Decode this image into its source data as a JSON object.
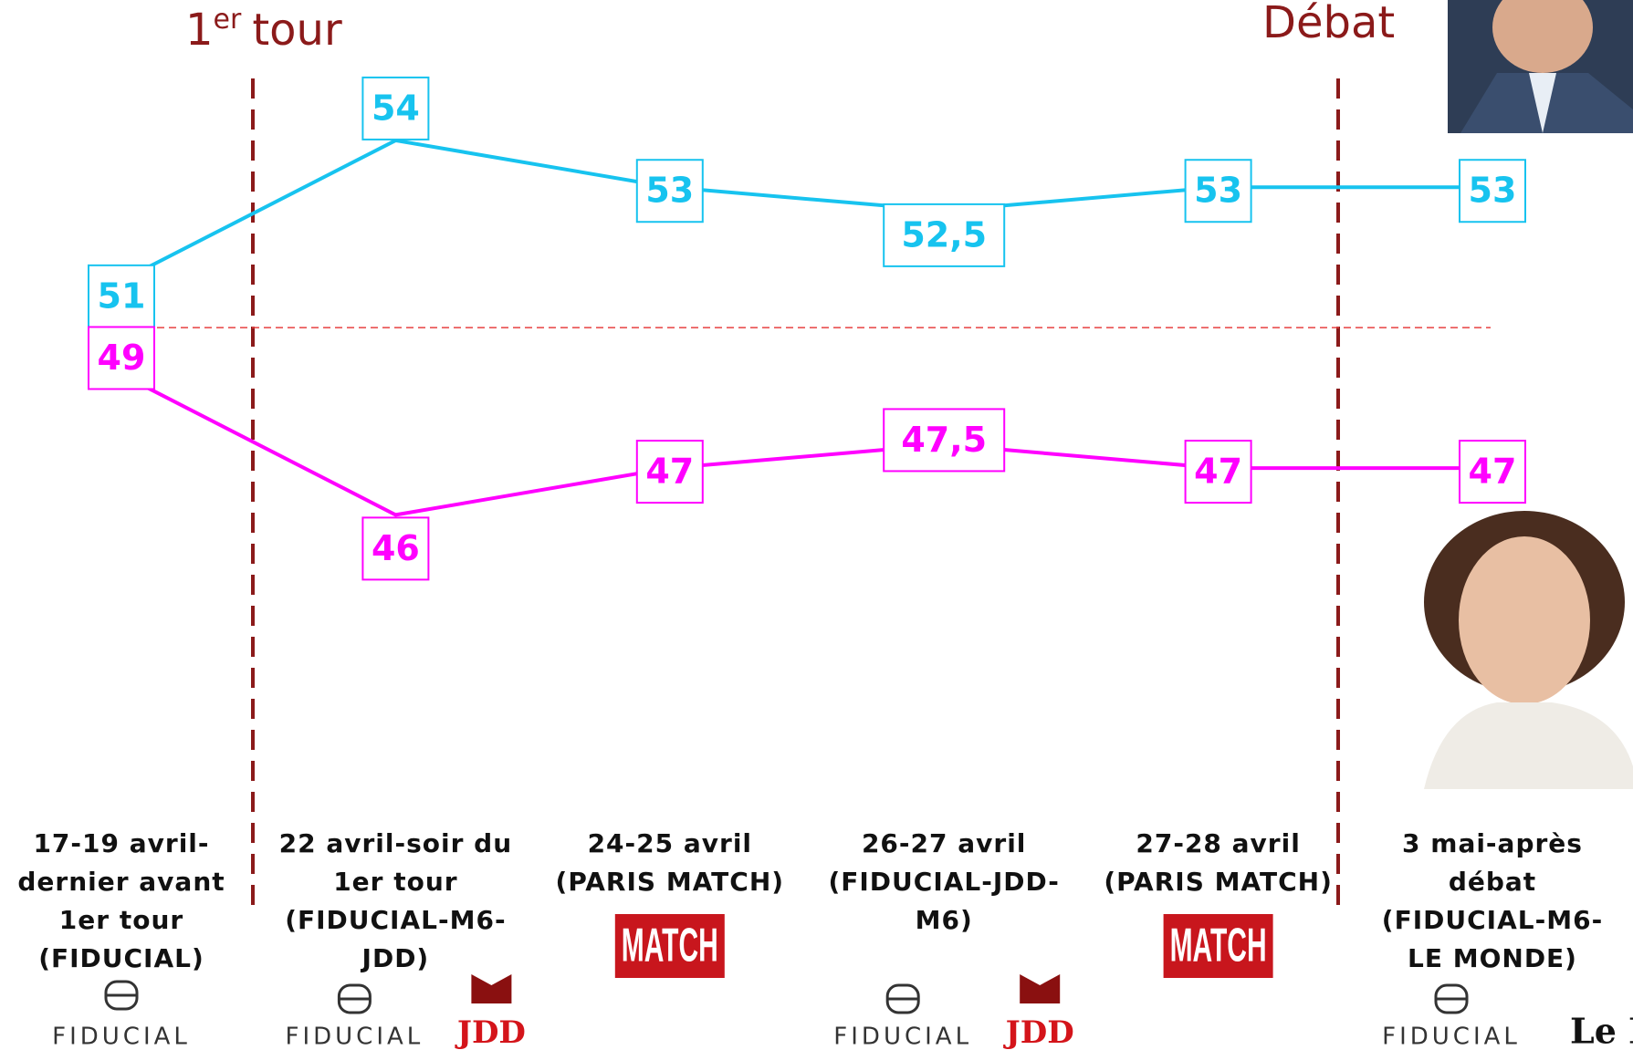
{
  "chart_data": {
    "type": "line",
    "annotations": [
      {
        "text": "1",
        "sup": "er",
        "rest": "tour"
      },
      {
        "text": "Débat"
      }
    ],
    "categories": [
      "17-19 avril-dernier avant 1er tour (FIDUCIAL)",
      "22 avril-soir du 1er tour (FIDUCIAL-M6-JDD)",
      "24-25 avril (PARIS MATCH)",
      "26-27 avril (FIDUCIAL-JDD-M6)",
      "27-28 avril (PARIS MATCH)",
      "3 mai-après débat (FIDUCIAL-M6-LE MONDE)"
    ],
    "logos": [
      [
        "FIDUCIAL"
      ],
      [
        "FIDUCIAL",
        "JDD"
      ],
      [
        "MATCH"
      ],
      [
        "FIDUCIAL",
        "JDD"
      ],
      [
        "MATCH"
      ],
      [
        "FIDUCIAL",
        "Le Monde"
      ]
    ],
    "series": [
      {
        "color": "#17c3ef",
        "values": [
          51,
          54,
          53,
          52.5,
          53,
          53
        ],
        "value_labels": [
          "51",
          "54",
          "53",
          "52,5",
          "53",
          "53"
        ]
      },
      {
        "color": "#ff00ff",
        "values": [
          49,
          46,
          47,
          47.5,
          47,
          47
        ],
        "value_labels": [
          "49",
          "46",
          "47",
          "47,5",
          "47",
          "47"
        ]
      }
    ],
    "reference_line": 50,
    "ylim": [
      44,
      57
    ]
  }
}
